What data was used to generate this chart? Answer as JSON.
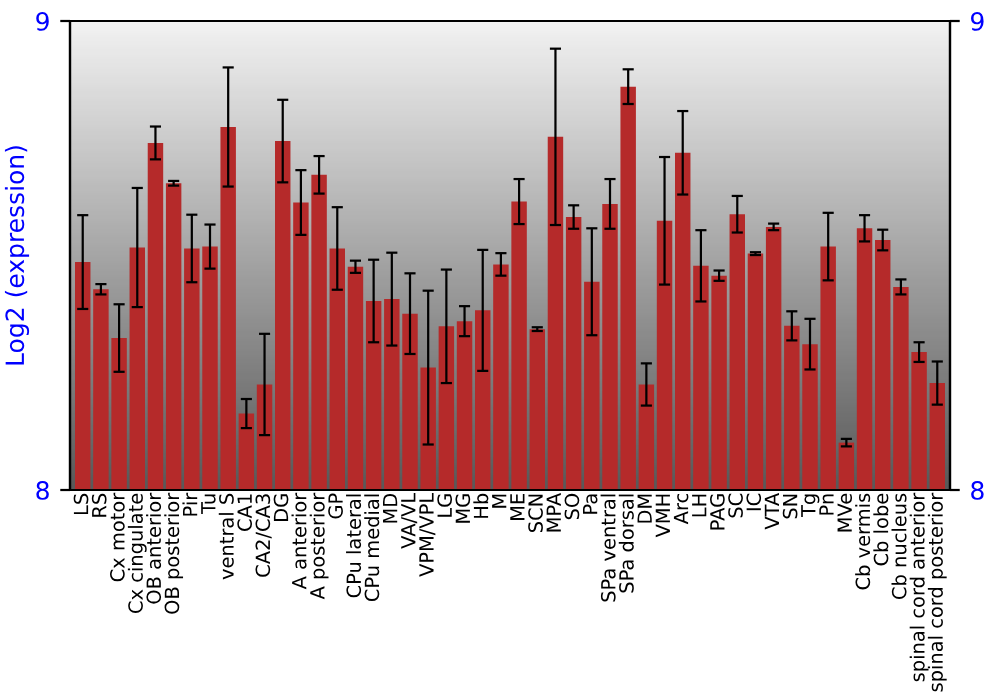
{
  "chart_data": {
    "type": "bar",
    "ylabel": "Log2 (expression)",
    "categories": [
      "LS",
      "RS",
      "Cx motor",
      "Cx cingulate",
      "OB anterior",
      "OB posterior",
      "Pir",
      "Tu",
      "ventral S",
      "CA1",
      "CA2/CA3",
      "DG",
      "A anterior",
      "A posterior",
      "GP",
      "CPu lateral",
      "CPu medial",
      "MD",
      "VA/VL",
      "VPM/VPL",
      "LG",
      "MG",
      "Hb",
      "M",
      "ME",
      "SCN",
      "MPA",
      "SO",
      "Pa",
      "SPa ventral",
      "SPa dorsal",
      "DM",
      "VMH",
      "Arc",
      "LH",
      "PAG",
      "SC",
      "IC",
      "VTA",
      "SN",
      "Tg",
      "Pn",
      "MVe",
      "Cb vermis",
      "Cb lobe",
      "Cb nucleus",
      "spinal cord anterior",
      "spinal cord posterior"
    ],
    "values": [
      8.486,
      8.428,
      8.324,
      8.517,
      8.74,
      8.654,
      8.515,
      8.519,
      8.774,
      8.163,
      8.225,
      8.744,
      8.613,
      8.672,
      8.515,
      8.476,
      8.403,
      8.407,
      8.376,
      8.261,
      8.349,
      8.36,
      8.383,
      8.481,
      8.615,
      8.343,
      8.753,
      8.582,
      8.444,
      8.61,
      8.86,
      8.225,
      8.574,
      8.719,
      8.478,
      8.457,
      8.588,
      8.504,
      8.561,
      8.35,
      8.311,
      8.519,
      8.101,
      8.558,
      8.533,
      8.433,
      8.294,
      8.228
    ],
    "errors": [
      0.1,
      0.011,
      0.072,
      0.127,
      0.035,
      0.005,
      0.072,
      0.047,
      0.127,
      0.031,
      0.108,
      0.088,
      0.069,
      0.04,
      0.088,
      0.013,
      0.088,
      0.099,
      0.086,
      0.164,
      0.121,
      0.032,
      0.129,
      0.024,
      0.048,
      0.004,
      0.188,
      0.025,
      0.114,
      0.053,
      0.037,
      0.045,
      0.136,
      0.089,
      0.076,
      0.011,
      0.039,
      0.003,
      0.007,
      0.031,
      0.054,
      0.072,
      0.008,
      0.028,
      0.022,
      0.016,
      0.021,
      0.046
    ],
    "color": "#b52a2a",
    "ylim": [
      8,
      9
    ],
    "yticks": [
      8,
      9
    ],
    "y2lim": [
      8,
      9
    ],
    "y2ticks": [
      8,
      9
    ],
    "grid": false,
    "legend": false
  }
}
